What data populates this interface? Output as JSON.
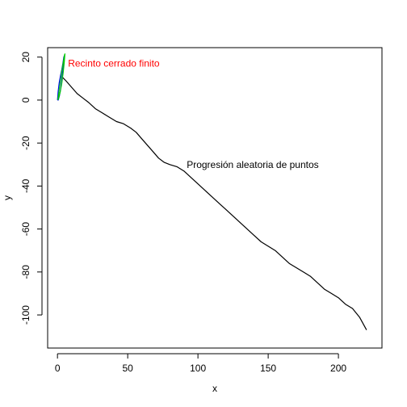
{
  "chart_data": {
    "type": "line",
    "title": "",
    "xlabel": "x",
    "ylabel": "y",
    "xlim": [
      -7,
      231
    ],
    "ylim": [
      -115.4,
      24.4
    ],
    "x_ticks": [
      0,
      50,
      100,
      150,
      200
    ],
    "y_ticks": [
      20,
      0,
      -20,
      -40,
      -60,
      -80,
      -100
    ],
    "grid": false,
    "series": [
      {
        "color": "#000000",
        "points": [
          [
            3,
            11
          ],
          [
            6,
            9
          ],
          [
            10,
            6
          ],
          [
            14,
            3
          ],
          [
            18,
            1
          ],
          [
            22,
            -1
          ],
          [
            27,
            -4
          ],
          [
            32,
            -6
          ],
          [
            37,
            -8
          ],
          [
            42,
            -10
          ],
          [
            47,
            -11
          ],
          [
            52,
            -13
          ],
          [
            56,
            -15
          ],
          [
            60,
            -18
          ],
          [
            64,
            -21
          ],
          [
            68,
            -24
          ],
          [
            72,
            -27
          ],
          [
            76,
            -29
          ],
          [
            80,
            -30
          ],
          [
            85,
            -31
          ],
          [
            90,
            -33
          ],
          [
            95,
            -36
          ],
          [
            100,
            -39
          ],
          [
            105,
            -42
          ],
          [
            110,
            -45
          ],
          [
            115,
            -48
          ],
          [
            120,
            -51
          ],
          [
            125,
            -54
          ],
          [
            130,
            -57
          ],
          [
            135,
            -60
          ],
          [
            140,
            -63
          ],
          [
            145,
            -66
          ],
          [
            150,
            -68
          ],
          [
            155,
            -70
          ],
          [
            160,
            -73
          ],
          [
            165,
            -76
          ],
          [
            170,
            -78
          ],
          [
            175,
            -80
          ],
          [
            180,
            -82
          ],
          [
            185,
            -85
          ],
          [
            190,
            -88
          ],
          [
            195,
            -90
          ],
          [
            200,
            -92
          ],
          [
            205,
            -95
          ],
          [
            210,
            -97
          ],
          [
            215,
            -101
          ],
          [
            220,
            -107
          ]
        ]
      },
      {
        "color": "#0000ff",
        "points": [
          [
            0,
            0
          ],
          [
            0.5,
            4
          ],
          [
            1.2,
            8
          ],
          [
            2,
            11
          ],
          [
            3,
            14
          ],
          [
            3.8,
            17
          ],
          [
            4.5,
            20
          ],
          [
            4.8,
            20.5
          ],
          [
            4.4,
            17
          ],
          [
            3.7,
            13
          ],
          [
            3,
            9
          ],
          [
            2.2,
            5
          ],
          [
            1.4,
            2
          ],
          [
            0.6,
            0
          ],
          [
            0,
            0
          ]
        ]
      },
      {
        "color": "#00cc00",
        "points": [
          [
            0.3,
            0
          ],
          [
            1.2,
            5
          ],
          [
            2.3,
            10
          ],
          [
            3.2,
            14
          ],
          [
            4.2,
            18
          ],
          [
            5,
            21
          ],
          [
            5.3,
            21.5
          ],
          [
            4.9,
            18
          ],
          [
            4.1,
            13
          ],
          [
            3.1,
            8
          ],
          [
            2,
            4
          ],
          [
            0.9,
            1
          ],
          [
            0.3,
            0
          ]
        ]
      }
    ],
    "annotations": [
      {
        "text": "Recinto cerrado finito",
        "color": "#ff0000",
        "x": 7.5,
        "y": 17
      },
      {
        "text": "Progresión aleatoria de puntos",
        "color": "#000000",
        "x": 92,
        "y": -30
      }
    ]
  }
}
